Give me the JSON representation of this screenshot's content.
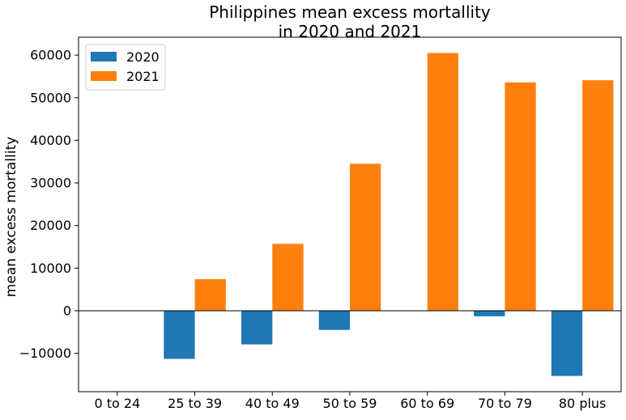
{
  "chart_data": {
    "type": "bar",
    "title": [
      "Philippines mean excess mortallity",
      "in 2020 and 2021"
    ],
    "xlabel": "",
    "ylabel": "mean excess mortallity",
    "categories": [
      "0 to 24",
      "25 to 39",
      "40 to 49",
      "50 to 59",
      "60 to 69",
      "70 to 79",
      "80 plus"
    ],
    "series": [
      {
        "name": "2020",
        "color": "#1f77b4",
        "values": [
          0,
          -11300,
          -7900,
          -4500,
          0,
          -1300,
          -15300
        ]
      },
      {
        "name": "2021",
        "color": "#ff7f0e",
        "values": [
          0,
          7400,
          15700,
          34500,
          60500,
          53600,
          54100
        ]
      }
    ],
    "ylim": [
      -19000,
      64200
    ],
    "yticks": [
      -10000,
      0,
      10000,
      20000,
      30000,
      40000,
      50000,
      60000
    ],
    "ytick_labels": [
      "−10000",
      "0",
      "10000",
      "20000",
      "30000",
      "40000",
      "50000",
      "60000"
    ],
    "zero_line": true,
    "grid": false,
    "legend_position": "upper-left"
  }
}
